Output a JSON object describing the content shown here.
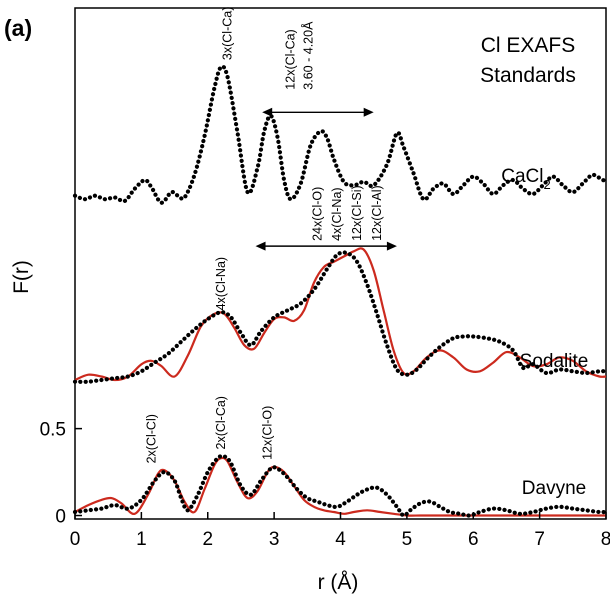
{
  "chart_data": {
    "type": "line",
    "panel_label": "(a)",
    "title_lines": [
      "Cl EXAFS",
      "Standards"
    ],
    "xlabel": "r (Å)",
    "ylabel": "F(r)",
    "xlim": [
      0,
      8
    ],
    "x_ticks": [
      "0",
      "1",
      "2",
      "3",
      "4",
      "5",
      "6",
      "7",
      "8"
    ],
    "y_ticks": [
      {
        "value": 0,
        "label": "0"
      },
      {
        "value": 0.5,
        "label": "0.5"
      }
    ],
    "ylim": [
      -0.02,
      2.92
    ],
    "grid": false,
    "colors": {
      "data": "#000000",
      "fit": "#cc2a1e"
    },
    "samples": [
      {
        "name": "CaCl2",
        "name_main": "CaCl",
        "name_sub": "2",
        "data": {
          "x": [
            0,
            0.15,
            0.3,
            0.45,
            0.6,
            0.75,
            0.9,
            1.05,
            1.15,
            1.3,
            1.45,
            1.55,
            1.65,
            1.8,
            1.95,
            2.1,
            2.2,
            2.3,
            2.45,
            2.6,
            2.75,
            2.85,
            2.95,
            3.05,
            3.15,
            3.25,
            3.4,
            3.55,
            3.7,
            3.8,
            3.9,
            4.05,
            4.2,
            4.35,
            4.5,
            4.7,
            4.85,
            4.95,
            5.1,
            5.25,
            5.4,
            5.55,
            5.7,
            5.85,
            6.0,
            6.15,
            6.3,
            6.45,
            6.6,
            6.75,
            6.9,
            7.05,
            7.2,
            7.35,
            7.5,
            7.65,
            7.8,
            7.95,
            8.0
          ],
          "y": [
            1.84,
            1.82,
            1.84,
            1.82,
            1.83,
            1.81,
            1.88,
            1.93,
            1.89,
            1.8,
            1.86,
            1.84,
            1.83,
            1.96,
            2.18,
            2.46,
            2.58,
            2.52,
            2.2,
            1.86,
            2.0,
            2.21,
            2.3,
            2.18,
            1.93,
            1.82,
            1.91,
            2.13,
            2.21,
            2.17,
            2.05,
            1.92,
            1.9,
            1.92,
            1.9,
            2.02,
            2.2,
            2.12,
            1.97,
            1.82,
            1.88,
            1.91,
            1.85,
            1.9,
            1.95,
            1.91,
            1.85,
            1.9,
            1.93,
            1.88,
            1.85,
            1.9,
            1.95,
            1.9,
            1.86,
            1.91,
            1.96,
            1.93,
            1.94
          ]
        },
        "fit": null
      },
      {
        "name": "Sodalite",
        "name_main": "Sodalite",
        "data": {
          "x": [
            0,
            0.2,
            0.4,
            0.6,
            0.8,
            1.0,
            1.2,
            1.4,
            1.6,
            1.8,
            2.0,
            2.2,
            2.35,
            2.5,
            2.65,
            2.8,
            3.0,
            3.2,
            3.4,
            3.6,
            3.8,
            3.95,
            4.1,
            4.25,
            4.4,
            4.55,
            4.7,
            4.85,
            5.0,
            5.15,
            5.3,
            5.5,
            5.7,
            5.85,
            6.0,
            6.2,
            6.4,
            6.6,
            6.75,
            6.9,
            7.1,
            7.3,
            7.5,
            7.7,
            7.9,
            8.0
          ],
          "y": [
            0.77,
            0.77,
            0.78,
            0.79,
            0.8,
            0.83,
            0.88,
            0.93,
            1.0,
            1.07,
            1.13,
            1.17,
            1.14,
            1.05,
            0.98,
            1.06,
            1.14,
            1.18,
            1.22,
            1.3,
            1.42,
            1.5,
            1.51,
            1.46,
            1.33,
            1.16,
            0.98,
            0.84,
            0.81,
            0.84,
            0.9,
            0.97,
            1.02,
            1.03,
            1.03,
            1.02,
            1.0,
            0.95,
            0.85,
            0.87,
            0.82,
            0.84,
            0.83,
            0.82,
            0.83,
            0.83
          ]
        },
        "fit": {
          "x": [
            0,
            0.2,
            0.4,
            0.6,
            0.8,
            1.0,
            1.15,
            1.3,
            1.5,
            1.7,
            1.9,
            2.1,
            2.25,
            2.4,
            2.55,
            2.7,
            2.85,
            3.0,
            3.15,
            3.3,
            3.45,
            3.6,
            3.75,
            3.9,
            4.05,
            4.2,
            4.35,
            4.5,
            4.65,
            4.8,
            4.95,
            5.1,
            5.3,
            5.5,
            5.7,
            5.9,
            6.1,
            6.3,
            6.5,
            6.7,
            6.9,
            7.1,
            7.3,
            7.5,
            7.7,
            7.9,
            8.0
          ],
          "y": [
            0.78,
            0.81,
            0.8,
            0.78,
            0.8,
            0.87,
            0.89,
            0.86,
            0.8,
            0.92,
            1.09,
            1.16,
            1.16,
            1.08,
            0.98,
            0.96,
            1.05,
            1.13,
            1.14,
            1.12,
            1.18,
            1.34,
            1.43,
            1.46,
            1.49,
            1.52,
            1.53,
            1.41,
            1.18,
            0.95,
            0.82,
            0.83,
            0.91,
            0.95,
            0.91,
            0.84,
            0.83,
            0.88,
            0.94,
            0.91,
            0.86,
            0.87,
            0.91,
            0.89,
            0.83,
            0.8,
            0.8
          ]
        }
      },
      {
        "name": "Davyne",
        "name_main": "Davyne",
        "data": {
          "x": [
            0,
            0.2,
            0.4,
            0.6,
            0.8,
            1.0,
            1.2,
            1.35,
            1.5,
            1.6,
            1.7,
            1.85,
            2.0,
            2.15,
            2.25,
            2.35,
            2.5,
            2.65,
            2.8,
            2.95,
            3.05,
            3.2,
            3.35,
            3.5,
            3.65,
            3.8,
            3.95,
            4.1,
            4.25,
            4.4,
            4.55,
            4.7,
            4.85,
            4.95,
            5.05,
            5.2,
            5.35,
            5.5,
            5.65,
            5.8,
            5.95,
            6.1,
            6.3,
            6.5,
            6.7,
            6.9,
            7.1,
            7.3,
            7.5,
            7.7,
            7.9,
            8.0
          ],
          "y": [
            0.02,
            0.03,
            0.04,
            0.06,
            0.04,
            0.09,
            0.2,
            0.25,
            0.2,
            0.1,
            0.03,
            0.12,
            0.25,
            0.33,
            0.34,
            0.3,
            0.17,
            0.12,
            0.2,
            0.27,
            0.27,
            0.22,
            0.15,
            0.1,
            0.08,
            0.06,
            0.05,
            0.08,
            0.12,
            0.15,
            0.16,
            0.12,
            0.05,
            0.0,
            0.03,
            0.07,
            0.08,
            0.05,
            0.02,
            0.01,
            0.0,
            0.02,
            0.04,
            0.03,
            0.01,
            0.02,
            0.04,
            0.05,
            0.04,
            0.03,
            0.02,
            0.02
          ]
        },
        "fit": {
          "x": [
            0,
            0.2,
            0.4,
            0.55,
            0.7,
            0.9,
            1.1,
            1.25,
            1.35,
            1.5,
            1.65,
            1.8,
            1.95,
            2.1,
            2.2,
            2.3,
            2.45,
            2.6,
            2.75,
            2.9,
            3.0,
            3.15,
            3.3,
            3.45,
            3.6,
            3.75,
            3.9,
            4.05,
            4.2,
            4.4,
            4.6,
            4.8,
            5.0,
            5.2,
            5.4,
            5.6,
            5.8,
            6.0,
            6.3,
            6.6,
            6.9,
            7.2,
            7.5,
            7.8,
            8.0
          ],
          "y": [
            0.02,
            0.06,
            0.09,
            0.1,
            0.07,
            0.01,
            0.12,
            0.24,
            0.26,
            0.2,
            0.08,
            0.02,
            0.15,
            0.29,
            0.33,
            0.31,
            0.19,
            0.1,
            0.14,
            0.25,
            0.28,
            0.25,
            0.17,
            0.09,
            0.05,
            0.03,
            0.02,
            0.01,
            0.02,
            0.03,
            0.02,
            0.01,
            0.0,
            0.0,
            0.0,
            0.0,
            0.0,
            0.0,
            0.0,
            0.0,
            0.0,
            0.0,
            0.0,
            0.0,
            0.0
          ]
        }
      }
    ],
    "annotations": [
      {
        "text": "3x(Cl-Ca)",
        "x": 2.3,
        "y": 2.62
      },
      {
        "text": "12x(Cl-Ca)",
        "x": 3.25,
        "y": 2.45,
        "line2": "3.60 - 4.20Å"
      },
      {
        "text": "24x(Cl-O)",
        "x": 3.65,
        "y": 1.58
      },
      {
        "text": "4x(Cl-Na)",
        "x": 3.95,
        "y": 1.58
      },
      {
        "text": "12x(Cl-Si)",
        "x": 4.25,
        "y": 1.58
      },
      {
        "text": "12x(Cl-Al)",
        "x": 4.55,
        "y": 1.58
      },
      {
        "text": "4x(Cl-Na)",
        "x": 2.2,
        "y": 1.18
      },
      {
        "text": "2x(Cl-Cl)",
        "x": 1.15,
        "y": 0.3
      },
      {
        "text": "2x(Cl-Ca)",
        "x": 2.2,
        "y": 0.38
      },
      {
        "text": "12x(Cl-O)",
        "x": 2.9,
        "y": 0.32
      }
    ],
    "arrows": [
      {
        "x1": 2.82,
        "x2": 4.5,
        "y": 2.32
      },
      {
        "x1": 2.72,
        "x2": 4.85,
        "y": 1.55
      }
    ]
  }
}
